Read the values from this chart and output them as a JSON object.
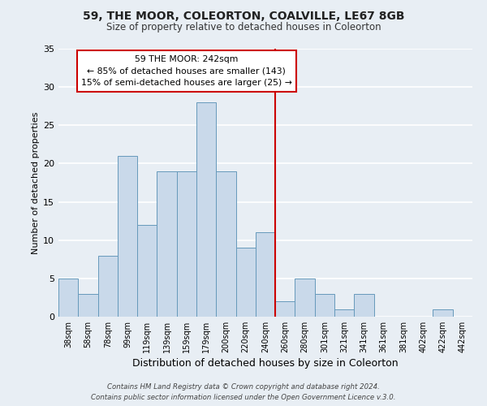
{
  "title": "59, THE MOOR, COLEORTON, COALVILLE, LE67 8GB",
  "subtitle": "Size of property relative to detached houses in Coleorton",
  "xlabel": "Distribution of detached houses by size in Coleorton",
  "ylabel": "Number of detached properties",
  "bar_labels": [
    "38sqm",
    "58sqm",
    "78sqm",
    "99sqm",
    "119sqm",
    "139sqm",
    "159sqm",
    "179sqm",
    "200sqm",
    "220sqm",
    "240sqm",
    "260sqm",
    "280sqm",
    "301sqm",
    "321sqm",
    "341sqm",
    "361sqm",
    "381sqm",
    "402sqm",
    "422sqm",
    "442sqm"
  ],
  "bar_heights": [
    5,
    3,
    8,
    21,
    12,
    19,
    19,
    28,
    19,
    9,
    11,
    2,
    5,
    3,
    1,
    3,
    0,
    0,
    0,
    1,
    0
  ],
  "bar_color": "#c9d9ea",
  "bar_edge_color": "#6699bb",
  "vline_x": 10.5,
  "vline_color": "#cc0000",
  "annotation_title": "59 THE MOOR: 242sqm",
  "annotation_line1": "← 85% of detached houses are smaller (143)",
  "annotation_line2": "15% of semi-detached houses are larger (25) →",
  "annotation_box_facecolor": "#ffffff",
  "annotation_box_edgecolor": "#cc0000",
  "ylim": [
    0,
    35
  ],
  "yticks": [
    0,
    5,
    10,
    15,
    20,
    25,
    30,
    35
  ],
  "footer1": "Contains HM Land Registry data © Crown copyright and database right 2024.",
  "footer2": "Contains public sector information licensed under the Open Government Licence v.3.0.",
  "background_color": "#e8eef4",
  "grid_color": "#ffffff",
  "figsize": [
    6.0,
    5.0
  ],
  "dpi": 100
}
